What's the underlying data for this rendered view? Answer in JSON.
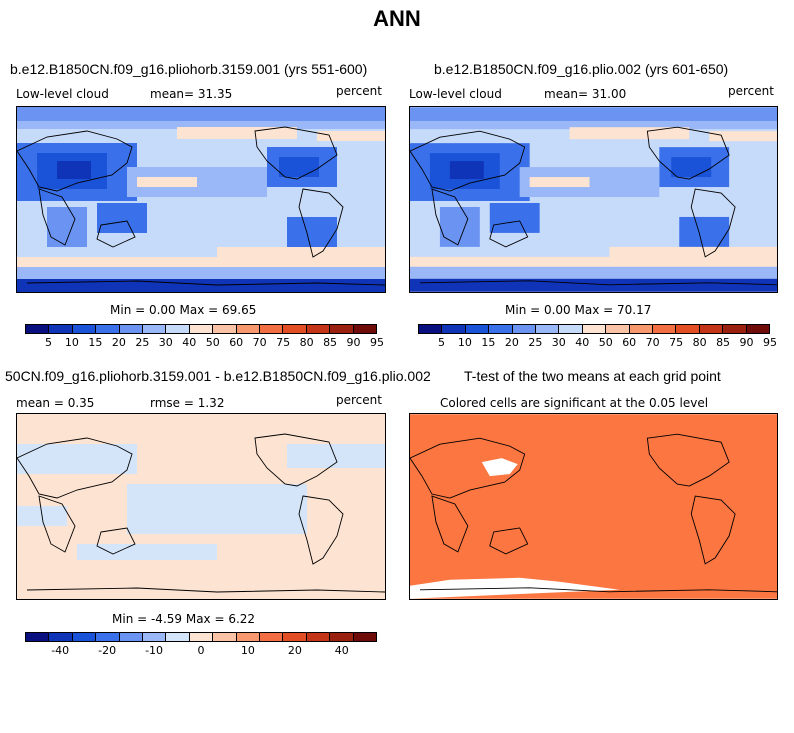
{
  "title": "ANN",
  "palette_abs": [
    "#0a0f80",
    "#1034b8",
    "#1a52d8",
    "#3a70ea",
    "#6a93f2",
    "#9ab8f7",
    "#c6daf9",
    "#fde3d1",
    "#fbc3a5",
    "#f8986e",
    "#f36e43",
    "#e24d25",
    "#c43418",
    "#9a2010",
    "#6f0c0a"
  ],
  "palette_diff": [
    "#0a0f80",
    "#1034b8",
    "#1a52d8",
    "#3a70ea",
    "#6a93f2",
    "#9ab8f7",
    "#d4e4f9",
    "#fde3d1",
    "#fbc3a5",
    "#f8986e",
    "#f36e43",
    "#e24d25",
    "#c43418",
    "#9a2010",
    "#6f0c0a"
  ],
  "panels": {
    "top_left": {
      "title": "b.e12.B1850CN.f09_g16.pliohorb.3159.001 (yrs 551-600)",
      "var_label": "Low-level cloud",
      "mean_text": "mean=  31.35",
      "units": "percent",
      "minmax": "Min =   0.00 Max =  69.65"
    },
    "top_right": {
      "title": "b.e12.B1850CN.f09_g16.plio.002 (yrs 601-650)",
      "var_label": "Low-level cloud",
      "mean_text": "mean=  31.00",
      "units": "percent",
      "minmax": "Min =   0.00 Max =  70.17"
    },
    "bottom_left": {
      "title": "50CN.f09_g16.pliohorb.3159.001 - b.e12.B1850CN.f09_g16.plio.002",
      "mean_text": "mean =   0.35",
      "rmse_text": "rmse =   1.32",
      "units": "percent",
      "minmax": "Min =  -4.59 Max =   6.22"
    },
    "bottom_right": {
      "title": "T-test of the two means at each grid point",
      "subtitle": "Colored cells are significant at the 0.05 level",
      "fill_color": "#fb7641"
    }
  },
  "colorbar_abs_ticks": [
    "5",
    "10",
    "15",
    "20",
    "25",
    "30",
    "40",
    "50",
    "60",
    "70",
    "75",
    "80",
    "85",
    "90",
    "95"
  ],
  "colorbar_diff_ticks": [
    "-40",
    "-20",
    "-10",
    "0",
    "10",
    "20",
    "40"
  ]
}
